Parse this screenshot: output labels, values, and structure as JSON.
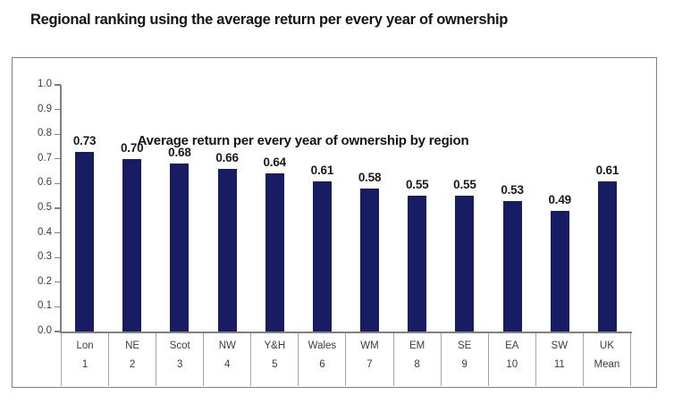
{
  "heading": "Regional ranking using the average return per every year of ownership",
  "chart_data": {
    "type": "bar",
    "title": "Average return per every year of ownership by region",
    "categories": [
      "Lon",
      "NE",
      "Scot",
      "NW",
      "Y&H",
      "Wales",
      "WM",
      "EM",
      "SE",
      "EA",
      "SW",
      "UK"
    ],
    "category_sublabels": [
      "1",
      "2",
      "3",
      "4",
      "5",
      "6",
      "7",
      "8",
      "9",
      "10",
      "11",
      "Mean"
    ],
    "values": [
      0.73,
      0.7,
      0.68,
      0.66,
      0.64,
      0.61,
      0.58,
      0.55,
      0.55,
      0.53,
      0.49,
      0.61
    ],
    "value_labels": [
      "0.73",
      "0.70",
      "0.68",
      "0.66",
      "0.64",
      "0.61",
      "0.58",
      "0.55",
      "0.55",
      "0.53",
      "0.49",
      "0.61"
    ],
    "xlabel": "",
    "ylabel": "",
    "ylim": [
      0.0,
      1.0
    ],
    "ytick_labels": [
      "1.0",
      "0.9",
      "0.8",
      "0.7",
      "0.6",
      "0.5",
      "0.4",
      "0.3",
      "0.2",
      "0.1",
      "0.0"
    ],
    "grid": "off",
    "legend": "none",
    "bar_color": "#181c63",
    "axis_color": "#808080",
    "divider_color": "#a6a6a6",
    "text_color": "#141414",
    "tick_text_color": "#3d3d3d"
  }
}
